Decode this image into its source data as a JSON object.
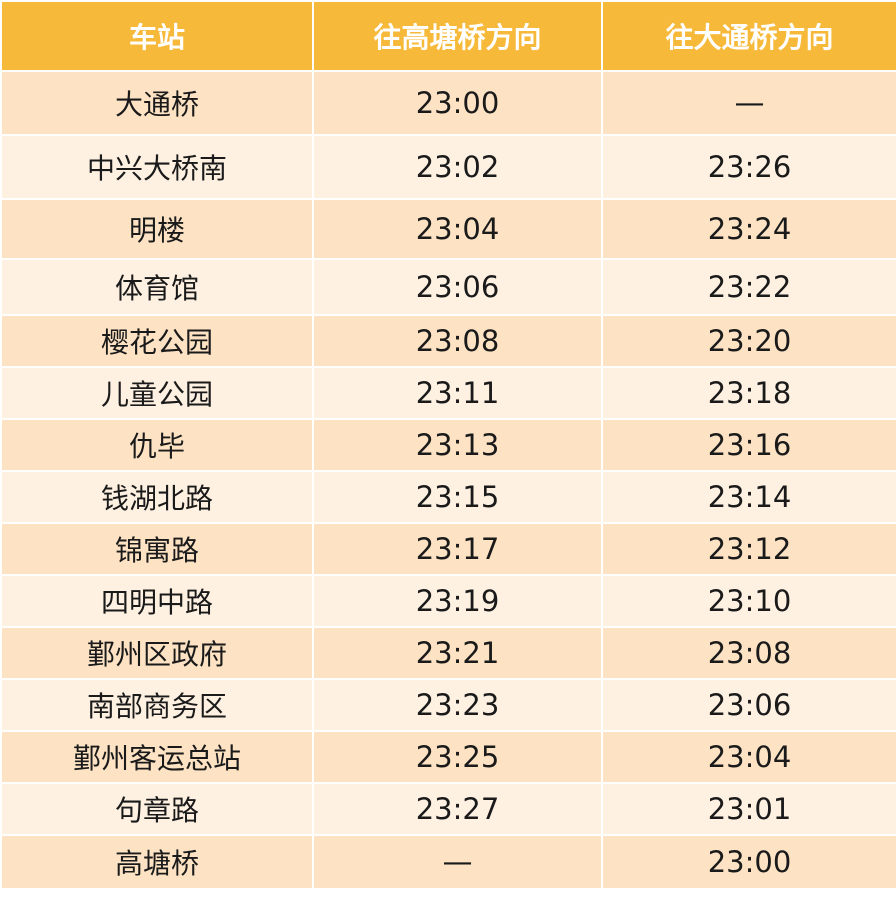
{
  "colors": {
    "header_bg": "#f7b93a",
    "row_dark": "#fde3c4",
    "row_light": "#fef1e2",
    "header_text": "#ffffff",
    "cell_text": "#1a1a1a"
  },
  "header": {
    "station": "车站",
    "to_gaotangqiao": "往高塘桥方向",
    "to_datongqiao": "往大通桥方向"
  },
  "rows": [
    {
      "station": "大通桥",
      "to_gaotangqiao": "23:00",
      "to_datongqiao": "—"
    },
    {
      "station": "中兴大桥南",
      "to_gaotangqiao": "23:02",
      "to_datongqiao": "23:26"
    },
    {
      "station": "明楼",
      "to_gaotangqiao": "23:04",
      "to_datongqiao": "23:24"
    },
    {
      "station": "体育馆",
      "to_gaotangqiao": "23:06",
      "to_datongqiao": "23:22"
    },
    {
      "station": "樱花公园",
      "to_gaotangqiao": "23:08",
      "to_datongqiao": "23:20"
    },
    {
      "station": "儿童公园",
      "to_gaotangqiao": "23:11",
      "to_datongqiao": "23:18"
    },
    {
      "station": "仇毕",
      "to_gaotangqiao": "23:13",
      "to_datongqiao": "23:16"
    },
    {
      "station": "钱湖北路",
      "to_gaotangqiao": "23:15",
      "to_datongqiao": "23:14"
    },
    {
      "station": "锦寓路",
      "to_gaotangqiao": "23:17",
      "to_datongqiao": "23:12"
    },
    {
      "station": "四明中路",
      "to_gaotangqiao": "23:19",
      "to_datongqiao": "23:10"
    },
    {
      "station": "鄞州区政府",
      "to_gaotangqiao": "23:21",
      "to_datongqiao": "23:08"
    },
    {
      "station": "南部商务区",
      "to_gaotangqiao": "23:23",
      "to_datongqiao": "23:06"
    },
    {
      "station": "鄞州客运总站",
      "to_gaotangqiao": "23:25",
      "to_datongqiao": "23:04"
    },
    {
      "station": "句章路",
      "to_gaotangqiao": "23:27",
      "to_datongqiao": "23:01"
    },
    {
      "station": "高塘桥",
      "to_gaotangqiao": "—",
      "to_datongqiao": "23:00"
    }
  ]
}
